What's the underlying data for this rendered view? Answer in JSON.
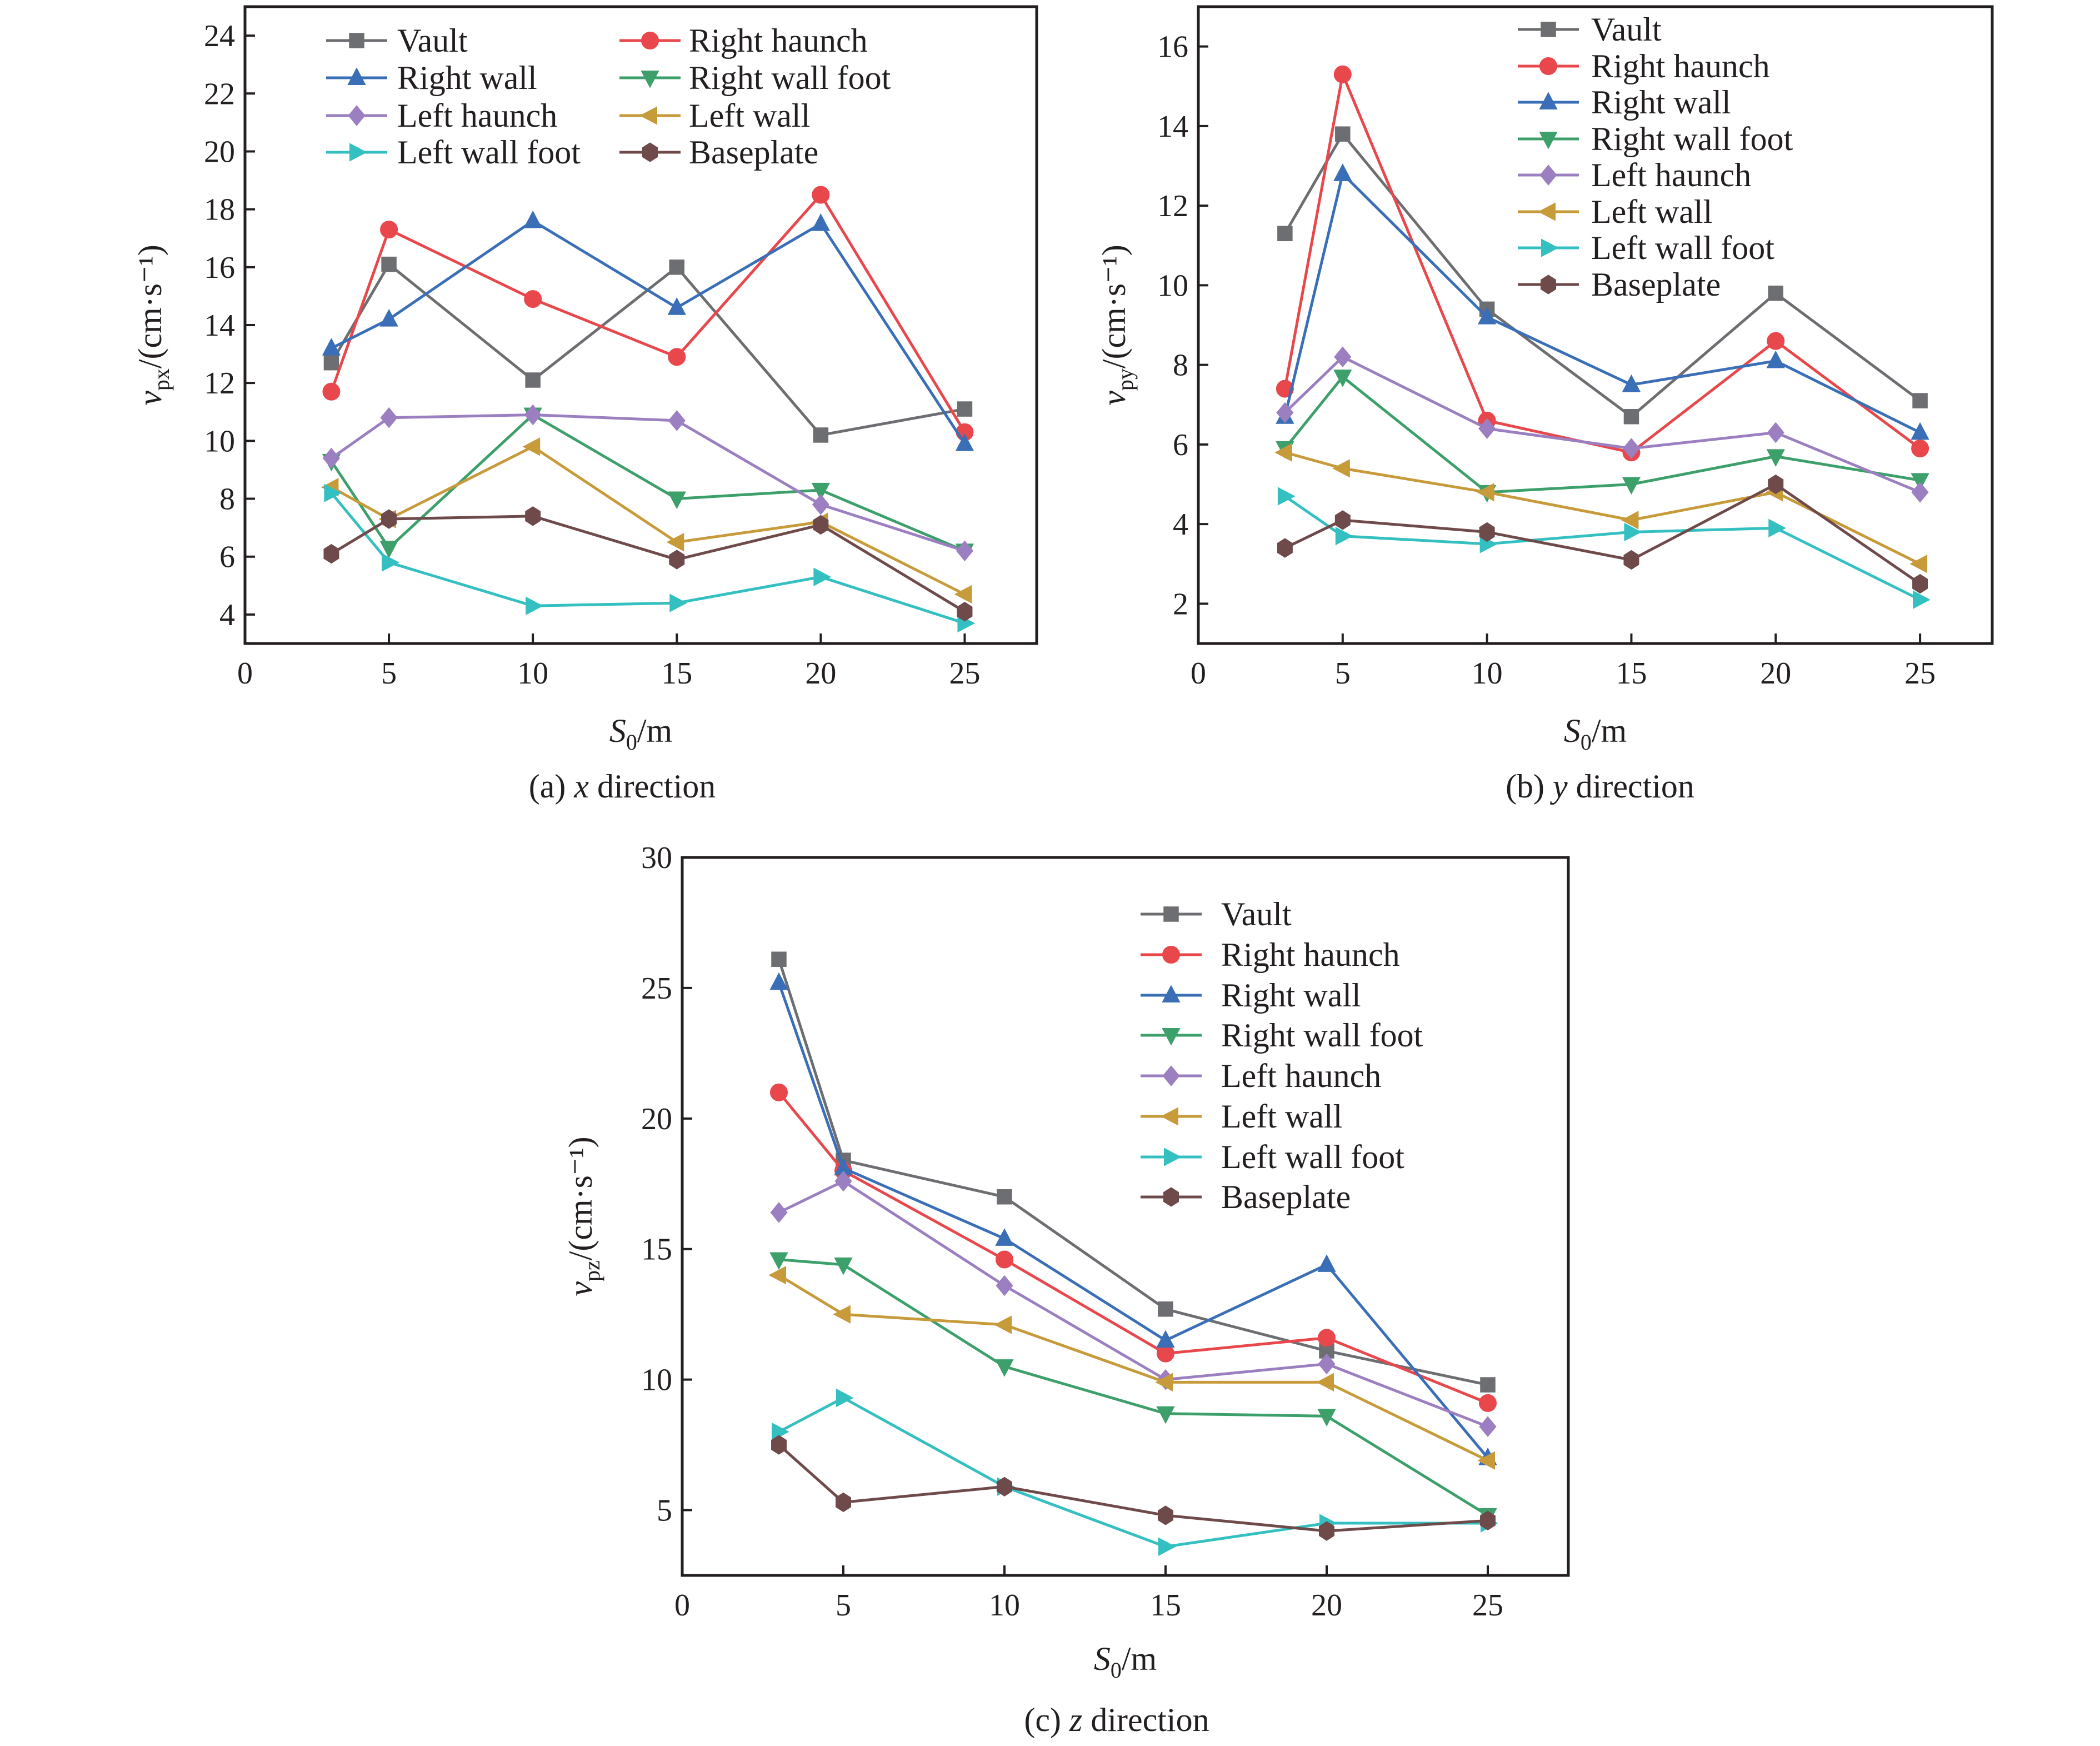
{
  "colors": {
    "Vault": "#6d6e71",
    "Right haunch": "#e8474c",
    "Right wall": "#3a6fb7",
    "Right wall foot": "#3da06b",
    "Left haunch": "#9b7fc0",
    "Left wall": "#c79a3a",
    "Left wall foot": "#34bfc1",
    "Baseplate": "#6f4a4a"
  },
  "markers": {
    "Vault": "square",
    "Right haunch": "circle",
    "Right wall": "triangle-up",
    "Right wall foot": "triangle-down",
    "Left haunch": "diamond",
    "Left wall": "triangle-left",
    "Left wall foot": "triangle-right",
    "Baseplate": "hexagon"
  },
  "chart_data": [
    {
      "type": "line",
      "caption": {
        "prefix": "(a) ",
        "axis": "x",
        "suffix": " direction"
      },
      "xlabel": {
        "main": "S",
        "sub": "0",
        "unit": "/m"
      },
      "ylabel": {
        "main": "v",
        "sub": "px",
        "unit": "/(cm·s⁻¹)"
      },
      "x": [
        3,
        5,
        10,
        15,
        20,
        25
      ],
      "xlim": [
        0,
        27.5
      ],
      "ylim": [
        3,
        25
      ],
      "xticks": [
        0,
        5,
        10,
        15,
        20,
        25
      ],
      "yticks": [
        4,
        6,
        8,
        10,
        12,
        14,
        16,
        18,
        20,
        22,
        24
      ],
      "grid": false,
      "legend": {
        "placement": "top",
        "columns": 2
      },
      "series": [
        {
          "name": "Vault",
          "values": [
            12.7,
            16.1,
            12.1,
            16.0,
            10.2,
            11.1
          ]
        },
        {
          "name": "Right haunch",
          "values": [
            11.7,
            17.3,
            14.9,
            12.9,
            18.5,
            10.3
          ]
        },
        {
          "name": "Right wall",
          "values": [
            13.2,
            14.2,
            17.6,
            14.6,
            17.5,
            9.9
          ]
        },
        {
          "name": "Right wall foot",
          "values": [
            9.3,
            6.3,
            10.9,
            8.0,
            8.3,
            6.2
          ]
        },
        {
          "name": "Left haunch",
          "values": [
            9.4,
            10.8,
            10.9,
            10.7,
            7.8,
            6.2
          ]
        },
        {
          "name": "Left wall",
          "values": [
            8.4,
            7.3,
            9.8,
            6.5,
            7.2,
            4.7
          ]
        },
        {
          "name": "Left wall foot",
          "values": [
            8.2,
            5.8,
            4.3,
            4.4,
            5.3,
            3.7
          ]
        },
        {
          "name": "Baseplate",
          "values": [
            6.1,
            7.3,
            7.4,
            5.9,
            7.1,
            4.1
          ]
        }
      ]
    },
    {
      "type": "line",
      "caption": {
        "prefix": "(b) ",
        "axis": "y",
        "suffix": " direction"
      },
      "xlabel": {
        "main": "S",
        "sub": "0",
        "unit": "/m"
      },
      "ylabel": {
        "main": "v",
        "sub": "py",
        "unit": "/(cm·s⁻¹)"
      },
      "x": [
        3,
        5,
        10,
        15,
        20,
        25
      ],
      "xlim": [
        0,
        27.5
      ],
      "ylim": [
        1,
        17
      ],
      "xticks": [
        0,
        5,
        10,
        15,
        20,
        25
      ],
      "yticks": [
        2,
        4,
        6,
        8,
        10,
        12,
        14,
        16
      ],
      "grid": false,
      "legend": {
        "placement": "top-right",
        "columns": 1
      },
      "series": [
        {
          "name": "Vault",
          "values": [
            11.3,
            13.8,
            9.4,
            6.7,
            9.8,
            7.1
          ]
        },
        {
          "name": "Right haunch",
          "values": [
            7.4,
            15.3,
            6.6,
            5.8,
            8.6,
            5.9
          ]
        },
        {
          "name": "Right wall",
          "values": [
            6.7,
            12.8,
            9.2,
            7.5,
            8.1,
            6.3
          ]
        },
        {
          "name": "Right wall foot",
          "values": [
            5.9,
            7.7,
            4.8,
            5.0,
            5.7,
            5.1
          ]
        },
        {
          "name": "Left haunch",
          "values": [
            6.8,
            8.2,
            6.4,
            5.9,
            6.3,
            4.8
          ]
        },
        {
          "name": "Left wall",
          "values": [
            5.8,
            5.4,
            4.8,
            4.1,
            4.8,
            3.0
          ]
        },
        {
          "name": "Left wall foot",
          "values": [
            4.7,
            3.7,
            3.5,
            3.8,
            3.9,
            2.1
          ]
        },
        {
          "name": "Baseplate",
          "values": [
            3.4,
            4.1,
            3.8,
            3.1,
            5.0,
            2.5
          ]
        }
      ]
    },
    {
      "type": "line",
      "caption": {
        "prefix": "(c) ",
        "axis": "z",
        "suffix": " direction"
      },
      "xlabel": {
        "main": "S",
        "sub": "0",
        "unit": "/m"
      },
      "ylabel": {
        "main": "v",
        "sub": "pz",
        "unit": "/(cm·s⁻¹)"
      },
      "x": [
        3,
        5,
        10,
        15,
        20,
        25
      ],
      "xlim": [
        0,
        27.5
      ],
      "ylim": [
        2.5,
        30
      ],
      "xticks": [
        0,
        5,
        10,
        15,
        20,
        25
      ],
      "yticks": [
        5,
        10,
        15,
        20,
        25,
        30
      ],
      "grid": false,
      "legend": {
        "placement": "top-right",
        "columns": 1
      },
      "series": [
        {
          "name": "Vault",
          "values": [
            26.1,
            18.4,
            17.0,
            12.7,
            11.1,
            9.8
          ]
        },
        {
          "name": "Right haunch",
          "values": [
            21.0,
            18.0,
            14.6,
            11.0,
            11.6,
            9.1
          ]
        },
        {
          "name": "Right wall",
          "values": [
            25.2,
            18.1,
            15.4,
            11.5,
            14.4,
            7.0
          ]
        },
        {
          "name": "Right wall foot",
          "values": [
            14.6,
            14.4,
            10.5,
            8.7,
            8.6,
            4.8
          ]
        },
        {
          "name": "Left haunch",
          "values": [
            16.4,
            17.6,
            13.6,
            10.0,
            10.6,
            8.2
          ]
        },
        {
          "name": "Left wall",
          "values": [
            14.0,
            12.5,
            12.1,
            9.9,
            9.9,
            6.9
          ]
        },
        {
          "name": "Left wall foot",
          "values": [
            8.0,
            9.3,
            5.9,
            3.6,
            4.5,
            4.5
          ]
        },
        {
          "name": "Baseplate",
          "values": [
            7.5,
            5.3,
            5.9,
            4.8,
            4.2,
            4.6
          ]
        }
      ]
    }
  ]
}
